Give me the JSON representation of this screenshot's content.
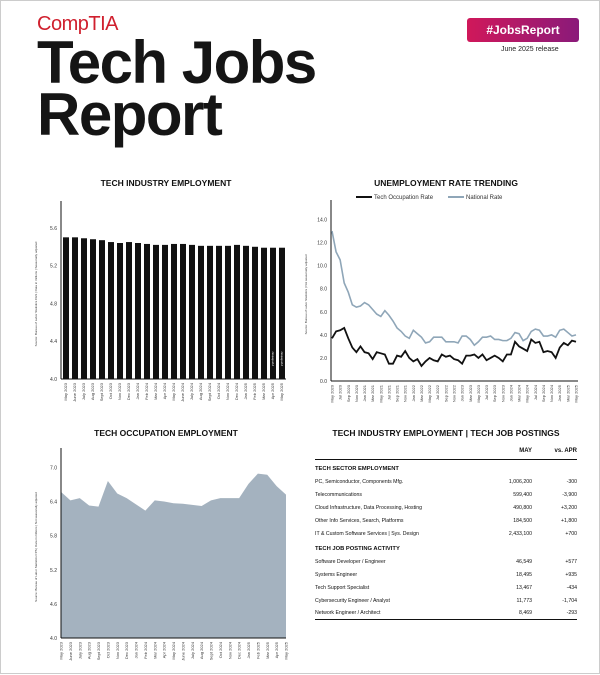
{
  "header": {
    "logo": "CompTIA",
    "title_line1": "Tech Jobs",
    "title_line2": "Report",
    "badge": "#JobsReport",
    "release": "June 2025 release",
    "brand_color": "#d0202e"
  },
  "chart_data": [
    {
      "type": "bar",
      "title": "TECH INDUSTRY EMPLOYMENT",
      "ylabel": "Source: Bureau of Labor Statistics CES | Data in millions | Seasonally adjusted",
      "ylim": [
        4.0,
        5.8
      ],
      "yticks": [
        "4.0",
        "4.4",
        "4.8",
        "5.2",
        "5.6"
      ],
      "annotation": "p-preliminary",
      "categories": [
        "May 2023",
        "June 2023",
        "July 2023",
        "Aug 2023",
        "Sept 2023",
        "Oct 2023",
        "Nov 2023",
        "Dec 2023",
        "Jan 2024",
        "Feb 2024",
        "Mar 2024",
        "Apr 2024",
        "May 2024",
        "June 2024",
        "July 2024",
        "Aug 2024",
        "Sept 2024",
        "Oct 2024",
        "Nov 2024",
        "Dec 2024",
        "Jan 2025",
        "Feb 2025",
        "Mar 2025",
        "Apr 2025",
        "May 2025"
      ],
      "values": [
        5.5,
        5.5,
        5.49,
        5.48,
        5.47,
        5.45,
        5.44,
        5.45,
        5.44,
        5.43,
        5.42,
        5.42,
        5.43,
        5.43,
        5.42,
        5.41,
        5.41,
        5.41,
        5.41,
        5.42,
        5.41,
        5.4,
        5.39,
        5.39,
        5.39
      ],
      "color": "#111111"
    },
    {
      "type": "line",
      "title": "UNEMPLOYMENT RATE TRENDING",
      "ylabel": "Source: Bureau of Labor Statistics | Not seasonally adjusted",
      "ylim": [
        0,
        15
      ],
      "yticks": [
        "0.0",
        "2.0",
        "4.0",
        "6.0",
        "8.0",
        "10.0",
        "12.0",
        "14.0"
      ],
      "legend": "top",
      "xticklabels": [
        "May 2020",
        "Jul 2020",
        "Sep 2020",
        "Nov 2020",
        "Jan 2021",
        "Mar 2021",
        "May 2021",
        "Jul 2021",
        "Sep 2021",
        "Nov 2021",
        "Jan 2022",
        "Mar 2022",
        "May 2022",
        "Jul 2022",
        "Sep 2022",
        "Nov 2022",
        "Jan 2023",
        "Mar 2023",
        "May 2023",
        "Jul 2023",
        "Sep 2023",
        "Nov 2023",
        "Jan 2024",
        "Mar 2024",
        "May 2024",
        "Jul 2024",
        "Sep 2024",
        "Nov 2024",
        "Jan 2025",
        "Mar 2025",
        "May 2025"
      ],
      "series": [
        {
          "name": "Tech Occupation Rate",
          "color": "#111111",
          "values": [
            3.7,
            4.3,
            4.4,
            4.6,
            3.7,
            2.9,
            2.5,
            3.0,
            2.5,
            2.4,
            1.9,
            2.5,
            2.4,
            2.3,
            1.5,
            1.5,
            2.2,
            2.1,
            2.6,
            2.0,
            1.7,
            1.9,
            1.3,
            1.7,
            2.0,
            1.8,
            1.7,
            2.3,
            2.1,
            2.2,
            1.9,
            1.8,
            1.5,
            2.2,
            2.2,
            2.3,
            2.0,
            2.3,
            1.8,
            2.0,
            2.2,
            2.0,
            1.7,
            2.3,
            2.3,
            3.4,
            3.0,
            2.8,
            2.6,
            3.6,
            3.3,
            3.4,
            2.5,
            2.6,
            2.5,
            2.0,
            2.9,
            3.3,
            3.1,
            3.5,
            3.4
          ]
        },
        {
          "name": "National Rate",
          "color": "#8fa6b8",
          "values": [
            13.0,
            11.2,
            10.5,
            8.5,
            7.7,
            6.6,
            6.4,
            6.5,
            6.8,
            6.6,
            6.2,
            5.8,
            5.6,
            6.1,
            5.7,
            5.2,
            4.6,
            4.3,
            3.9,
            3.7,
            4.4,
            4.1,
            3.8,
            3.3,
            3.4,
            3.8,
            3.8,
            3.8,
            3.4,
            3.4,
            3.4,
            3.3,
            3.9,
            3.9,
            3.6,
            3.1,
            3.4,
            3.8,
            3.8,
            3.9,
            3.6,
            3.6,
            3.5,
            3.5,
            3.7,
            4.2,
            4.1,
            3.5,
            3.7,
            4.3,
            4.5,
            4.4,
            3.9,
            3.9,
            4.0,
            3.8,
            4.4,
            4.5,
            4.2,
            3.9,
            4.0
          ]
        }
      ]
    },
    {
      "type": "area",
      "title": "TECH OCCUPATION EMPLOYMENT",
      "ylabel": "Source: Bureau of Labor Statistics CPS | Data in millions | Not seasonally adjusted",
      "ylim": [
        4.0,
        7.2
      ],
      "yticks": [
        "4.0",
        "4.6",
        "5.2",
        "5.8",
        "6.4",
        "7.0"
      ],
      "color": "#a4b2bf",
      "categories": [
        "May 2023",
        "June 2023",
        "July 2023",
        "Aug 2023",
        "Sept 2023",
        "Oct 2023",
        "Nov 2023",
        "Dec 2023",
        "Jan 2024",
        "Feb 2024",
        "Mar 2024",
        "Apr 2024",
        "May 2024",
        "June 2024",
        "July 2024",
        "Aug 2024",
        "Sept 2024",
        "Oct 2024",
        "Nov 2024",
        "Dec 2024",
        "Jan 2025",
        "Feb 2025",
        "Mar 2025",
        "Apr 2025",
        "May 2025"
      ],
      "values": [
        6.57,
        6.42,
        6.46,
        6.33,
        6.31,
        6.76,
        6.54,
        6.46,
        6.35,
        6.24,
        6.42,
        6.4,
        6.37,
        6.36,
        6.34,
        6.32,
        6.42,
        6.46,
        6.46,
        6.46,
        6.71,
        6.89,
        6.87,
        6.67,
        6.52
      ]
    }
  ],
  "table": {
    "title": "TECH INDUSTRY EMPLOYMENT | TECH JOB POSTINGS",
    "col_may": "MAY",
    "col_vs": "vs. APR",
    "sector_title": "TECH SECTOR EMPLOYMENT",
    "sector_rows": [
      {
        "label": "PC, Semiconductor, Components Mfg.",
        "may": "1,006,200",
        "vs": "-300"
      },
      {
        "label": "Telecommunications",
        "may": "599,400",
        "vs": "-3,900"
      },
      {
        "label": "Cloud Infrastructure, Data Processing, Hosting",
        "may": "490,800",
        "vs": "+3,200"
      },
      {
        "label": "Other Info Services, Search, Platforms",
        "may": "184,500",
        "vs": "+1,800"
      },
      {
        "label": "IT & Custom Software Services | Sys. Design",
        "may": "2,433,100",
        "vs": "+700"
      }
    ],
    "postings_title": "TECH JOB POSTING ACTIVITY",
    "postings_rows": [
      {
        "label": "Software Developer / Engineer",
        "may": "46,549",
        "vs": "+577"
      },
      {
        "label": "Systems Engineer",
        "may": "18,495",
        "vs": "+935"
      },
      {
        "label": "Tech Support Specialist",
        "may": "13,467",
        "vs": "-434"
      },
      {
        "label": "Cybersecurity Engineer / Analyst",
        "may": "11,773",
        "vs": "-1,704"
      },
      {
        "label": "Network Engineer / Architect",
        "may": "8,469",
        "vs": "-293"
      }
    ]
  }
}
